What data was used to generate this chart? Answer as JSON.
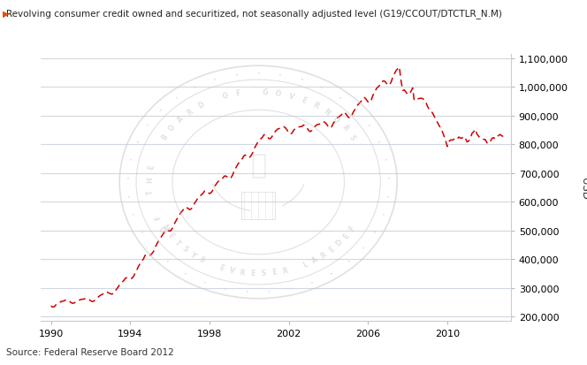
{
  "title": "Revolving consumer credit owned and securitized, not seasonally adjusted level (G19/CCOUT/DTCTLR_N.M)",
  "ylabel": "USD",
  "source": "Source: Federal Reserve Board 2012",
  "xlim": [
    1989.5,
    2013.2
  ],
  "ylim": [
    185000,
    1115000
  ],
  "yticks": [
    200000,
    300000,
    400000,
    500000,
    600000,
    700000,
    800000,
    900000,
    1000000,
    1100000
  ],
  "xticks": [
    1990,
    1994,
    1998,
    2002,
    2006,
    2010
  ],
  "line_color": "#cc0000",
  "bg_color": "#ffffff",
  "plot_bg_color": "#ffffff",
  "grid_color": "#d0d8e0",
  "title_arrow_color": "#e05000",
  "data": [
    [
      1990.0,
      238000
    ],
    [
      1990.08,
      234000
    ],
    [
      1990.17,
      235000
    ],
    [
      1990.25,
      242000
    ],
    [
      1990.33,
      244000
    ],
    [
      1990.42,
      248000
    ],
    [
      1990.5,
      253000
    ],
    [
      1990.58,
      254000
    ],
    [
      1990.67,
      256000
    ],
    [
      1990.75,
      259000
    ],
    [
      1990.83,
      258000
    ],
    [
      1990.92,
      255000
    ],
    [
      1991.0,
      250000
    ],
    [
      1991.08,
      247000
    ],
    [
      1991.17,
      248000
    ],
    [
      1991.25,
      252000
    ],
    [
      1991.33,
      254000
    ],
    [
      1991.42,
      258000
    ],
    [
      1991.5,
      260000
    ],
    [
      1991.58,
      261000
    ],
    [
      1991.67,
      262000
    ],
    [
      1991.75,
      264000
    ],
    [
      1991.83,
      263000
    ],
    [
      1991.92,
      260000
    ],
    [
      1992.0,
      256000
    ],
    [
      1992.08,
      253000
    ],
    [
      1992.17,
      255000
    ],
    [
      1992.25,
      261000
    ],
    [
      1992.33,
      265000
    ],
    [
      1992.42,
      271000
    ],
    [
      1992.5,
      275000
    ],
    [
      1992.58,
      278000
    ],
    [
      1992.67,
      281000
    ],
    [
      1992.75,
      286000
    ],
    [
      1992.83,
      286000
    ],
    [
      1992.92,
      283000
    ],
    [
      1993.0,
      280000
    ],
    [
      1993.08,
      279000
    ],
    [
      1993.17,
      282000
    ],
    [
      1993.25,
      291000
    ],
    [
      1993.33,
      298000
    ],
    [
      1993.42,
      307000
    ],
    [
      1993.5,
      315000
    ],
    [
      1993.58,
      320000
    ],
    [
      1993.67,
      326000
    ],
    [
      1993.75,
      334000
    ],
    [
      1993.83,
      336000
    ],
    [
      1993.92,
      334000
    ],
    [
      1994.0,
      332000
    ],
    [
      1994.08,
      334000
    ],
    [
      1994.17,
      341000
    ],
    [
      1994.25,
      353000
    ],
    [
      1994.33,
      363000
    ],
    [
      1994.42,
      376000
    ],
    [
      1994.5,
      386000
    ],
    [
      1994.58,
      393000
    ],
    [
      1994.67,
      402000
    ],
    [
      1994.75,
      414000
    ],
    [
      1994.83,
      417000
    ],
    [
      1994.92,
      415000
    ],
    [
      1995.0,
      414000
    ],
    [
      1995.08,
      419000
    ],
    [
      1995.17,
      427000
    ],
    [
      1995.25,
      441000
    ],
    [
      1995.33,
      452000
    ],
    [
      1995.42,
      463000
    ],
    [
      1995.5,
      472000
    ],
    [
      1995.58,
      480000
    ],
    [
      1995.67,
      489000
    ],
    [
      1995.75,
      499000
    ],
    [
      1995.83,
      502000
    ],
    [
      1995.92,
      500000
    ],
    [
      1996.0,
      498000
    ],
    [
      1996.08,
      503000
    ],
    [
      1996.17,
      514000
    ],
    [
      1996.25,
      527000
    ],
    [
      1996.33,
      537000
    ],
    [
      1996.42,
      549000
    ],
    [
      1996.5,
      557000
    ],
    [
      1996.58,
      565000
    ],
    [
      1996.67,
      572000
    ],
    [
      1996.75,
      581000
    ],
    [
      1996.83,
      581000
    ],
    [
      1996.92,
      577000
    ],
    [
      1997.0,
      573000
    ],
    [
      1997.08,
      576000
    ],
    [
      1997.17,
      584000
    ],
    [
      1997.25,
      596000
    ],
    [
      1997.33,
      604000
    ],
    [
      1997.42,
      614000
    ],
    [
      1997.5,
      619000
    ],
    [
      1997.58,
      624000
    ],
    [
      1997.67,
      630000
    ],
    [
      1997.75,
      638000
    ],
    [
      1997.83,
      638000
    ],
    [
      1997.92,
      633000
    ],
    [
      1998.0,
      629000
    ],
    [
      1998.08,
      632000
    ],
    [
      1998.17,
      641000
    ],
    [
      1998.25,
      654000
    ],
    [
      1998.33,
      661000
    ],
    [
      1998.42,
      670000
    ],
    [
      1998.5,
      675000
    ],
    [
      1998.58,
      679000
    ],
    [
      1998.67,
      683000
    ],
    [
      1998.75,
      690000
    ],
    [
      1998.83,
      690000
    ],
    [
      1998.92,
      685000
    ],
    [
      1999.0,
      681000
    ],
    [
      1999.08,
      684000
    ],
    [
      1999.17,
      694000
    ],
    [
      1999.25,
      709000
    ],
    [
      1999.33,
      719000
    ],
    [
      1999.42,
      730000
    ],
    [
      1999.5,
      738000
    ],
    [
      1999.58,
      745000
    ],
    [
      1999.67,
      752000
    ],
    [
      1999.75,
      762000
    ],
    [
      1999.83,
      763000
    ],
    [
      1999.92,
      758000
    ],
    [
      2000.0,
      754000
    ],
    [
      2000.08,
      759000
    ],
    [
      2000.17,
      770000
    ],
    [
      2000.25,
      785000
    ],
    [
      2000.33,
      795000
    ],
    [
      2000.42,
      806000
    ],
    [
      2000.5,
      813000
    ],
    [
      2000.58,
      819000
    ],
    [
      2000.67,
      825000
    ],
    [
      2000.75,
      834000
    ],
    [
      2000.83,
      833000
    ],
    [
      2000.92,
      827000
    ],
    [
      2001.0,
      820000
    ],
    [
      2001.08,
      821000
    ],
    [
      2001.17,
      829000
    ],
    [
      2001.25,
      840000
    ],
    [
      2001.33,
      846000
    ],
    [
      2001.42,
      853000
    ],
    [
      2001.5,
      855000
    ],
    [
      2001.58,
      857000
    ],
    [
      2001.67,
      858000
    ],
    [
      2001.75,
      862000
    ],
    [
      2001.83,
      858000
    ],
    [
      2001.92,
      850000
    ],
    [
      2002.0,
      840000
    ],
    [
      2002.08,
      836000
    ],
    [
      2002.17,
      840000
    ],
    [
      2002.25,
      850000
    ],
    [
      2002.33,
      855000
    ],
    [
      2002.42,
      860000
    ],
    [
      2002.5,
      861000
    ],
    [
      2002.58,
      862000
    ],
    [
      2002.67,
      863000
    ],
    [
      2002.75,
      868000
    ],
    [
      2002.83,
      865000
    ],
    [
      2002.92,
      858000
    ],
    [
      2003.0,
      849000
    ],
    [
      2003.08,
      845000
    ],
    [
      2003.17,
      849000
    ],
    [
      2003.25,
      858000
    ],
    [
      2003.33,
      863000
    ],
    [
      2003.42,
      869000
    ],
    [
      2003.5,
      870000
    ],
    [
      2003.58,
      872000
    ],
    [
      2003.67,
      874000
    ],
    [
      2003.75,
      879000
    ],
    [
      2003.83,
      877000
    ],
    [
      2003.92,
      870000
    ],
    [
      2004.0,
      861000
    ],
    [
      2004.08,
      857000
    ],
    [
      2004.17,
      862000
    ],
    [
      2004.25,
      874000
    ],
    [
      2004.33,
      882000
    ],
    [
      2004.42,
      891000
    ],
    [
      2004.5,
      895000
    ],
    [
      2004.58,
      899000
    ],
    [
      2004.67,
      904000
    ],
    [
      2004.75,
      912000
    ],
    [
      2004.83,
      911000
    ],
    [
      2004.92,
      903000
    ],
    [
      2005.0,
      895000
    ],
    [
      2005.08,
      892000
    ],
    [
      2005.17,
      899000
    ],
    [
      2005.25,
      912000
    ],
    [
      2005.33,
      921000
    ],
    [
      2005.42,
      933000
    ],
    [
      2005.5,
      939000
    ],
    [
      2005.58,
      945000
    ],
    [
      2005.67,
      952000
    ],
    [
      2005.75,
      963000
    ],
    [
      2005.83,
      963000
    ],
    [
      2005.92,
      956000
    ],
    [
      2006.0,
      948000
    ],
    [
      2006.08,
      946000
    ],
    [
      2006.17,
      956000
    ],
    [
      2006.25,
      972000
    ],
    [
      2006.33,
      982000
    ],
    [
      2006.42,
      994000
    ],
    [
      2006.5,
      1000000
    ],
    [
      2006.58,
      1005000
    ],
    [
      2006.67,
      1011000
    ],
    [
      2006.75,
      1021000
    ],
    [
      2006.83,
      1021000
    ],
    [
      2006.92,
      1014000
    ],
    [
      2007.0,
      1007000
    ],
    [
      2007.08,
      1007000
    ],
    [
      2007.17,
      1018000
    ],
    [
      2007.25,
      1035000
    ],
    [
      2007.33,
      1046000
    ],
    [
      2007.42,
      1058000
    ],
    [
      2007.5,
      1064000
    ],
    [
      2007.58,
      1070000
    ],
    [
      2007.67,
      1020000
    ],
    [
      2007.75,
      988000
    ],
    [
      2007.83,
      990000
    ],
    [
      2007.92,
      982000
    ],
    [
      2008.0,
      974000
    ],
    [
      2008.08,
      976000
    ],
    [
      2008.17,
      985000
    ],
    [
      2008.25,
      997000
    ],
    [
      2008.33,
      954000
    ],
    [
      2008.42,
      958000
    ],
    [
      2008.5,
      959000
    ],
    [
      2008.58,
      960000
    ],
    [
      2008.67,
      961000
    ],
    [
      2008.75,
      960000
    ],
    [
      2008.83,
      956000
    ],
    [
      2008.92,
      947000
    ],
    [
      2009.0,
      933000
    ],
    [
      2009.08,
      923000
    ],
    [
      2009.17,
      918000
    ],
    [
      2009.25,
      910000
    ],
    [
      2009.33,
      900000
    ],
    [
      2009.42,
      887000
    ],
    [
      2009.5,
      877000
    ],
    [
      2009.58,
      867000
    ],
    [
      2009.67,
      856000
    ],
    [
      2009.75,
      845000
    ],
    [
      2009.83,
      830000
    ],
    [
      2009.92,
      812000
    ],
    [
      2010.0,
      793000
    ],
    [
      2010.08,
      810000
    ],
    [
      2010.17,
      816000
    ],
    [
      2010.25,
      815000
    ],
    [
      2010.33,
      818000
    ],
    [
      2010.42,
      823000
    ],
    [
      2010.5,
      819000
    ],
    [
      2010.58,
      826000
    ],
    [
      2010.67,
      822000
    ],
    [
      2010.75,
      822000
    ],
    [
      2010.83,
      828000
    ],
    [
      2010.92,
      820000
    ],
    [
      2011.0,
      809000
    ],
    [
      2011.08,
      812000
    ],
    [
      2011.17,
      823000
    ],
    [
      2011.25,
      839000
    ],
    [
      2011.33,
      844000
    ],
    [
      2011.42,
      853000
    ],
    [
      2011.5,
      836000
    ],
    [
      2011.58,
      829000
    ],
    [
      2011.67,
      821000
    ],
    [
      2011.75,
      820000
    ],
    [
      2011.83,
      818000
    ],
    [
      2011.92,
      817000
    ],
    [
      2012.0,
      806000
    ],
    [
      2012.08,
      803000
    ],
    [
      2012.17,
      810000
    ],
    [
      2012.25,
      821000
    ],
    [
      2012.33,
      824000
    ],
    [
      2012.42,
      820000
    ],
    [
      2012.5,
      828000
    ],
    [
      2012.58,
      831000
    ],
    [
      2012.67,
      835000
    ],
    [
      2012.75,
      830000
    ],
    [
      2012.83,
      828000
    ]
  ]
}
